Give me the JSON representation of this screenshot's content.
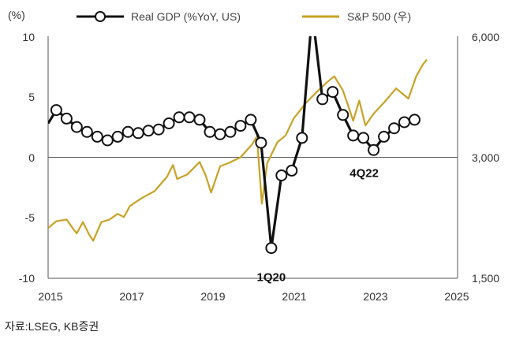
{
  "chart_data": {
    "type": "line",
    "y_unit_label": "(%)",
    "x_ticks": [
      "2015",
      "2017",
      "2019",
      "2021",
      "2023",
      "2025"
    ],
    "xlim": [
      2015,
      2025
    ],
    "y_left": {
      "ticks": [
        "10",
        "5",
        "0",
        "-5",
        "-10"
      ],
      "values": [
        10,
        5,
        0,
        -5,
        -10
      ],
      "ylim": [
        -10,
        10
      ]
    },
    "y_right": {
      "ticks": [
        "6,000",
        "3,000",
        "1,500"
      ],
      "values": [
        6000,
        3000,
        1500
      ],
      "scale": "log",
      "ylim": [
        1500,
        6000
      ]
    },
    "grid": "horizontal-zero-line",
    "legend_position": "top",
    "series": [
      {
        "name": "Real GDP (%YoY, US)",
        "axis": "left",
        "color": "#111111",
        "points": [
          [
            2015.0,
            2.8
          ],
          [
            2015.2,
            3.9
          ],
          [
            2015.45,
            3.2
          ],
          [
            2015.7,
            2.5
          ],
          [
            2015.95,
            2.1
          ],
          [
            2016.2,
            1.7
          ],
          [
            2016.45,
            1.4
          ],
          [
            2016.7,
            1.7
          ],
          [
            2016.95,
            2.1
          ],
          [
            2017.2,
            2.0
          ],
          [
            2017.45,
            2.2
          ],
          [
            2017.7,
            2.3
          ],
          [
            2017.95,
            2.8
          ],
          [
            2018.2,
            3.3
          ],
          [
            2018.45,
            3.3
          ],
          [
            2018.7,
            3.1
          ],
          [
            2018.95,
            2.1
          ],
          [
            2019.2,
            1.9
          ],
          [
            2019.45,
            2.1
          ],
          [
            2019.7,
            2.6
          ],
          [
            2019.95,
            3.1
          ],
          [
            2020.2,
            1.2
          ],
          [
            2020.45,
            -7.5
          ],
          [
            2020.7,
            -1.5
          ],
          [
            2020.95,
            -1.1
          ],
          [
            2021.2,
            1.6
          ],
          [
            2021.45,
            12.0
          ],
          [
            2021.7,
            4.8
          ],
          [
            2021.95,
            5.4
          ],
          [
            2022.2,
            3.5
          ],
          [
            2022.45,
            1.8
          ],
          [
            2022.7,
            1.6
          ],
          [
            2022.95,
            0.6
          ],
          [
            2023.2,
            1.7
          ],
          [
            2023.45,
            2.4
          ],
          [
            2023.7,
            2.9
          ],
          [
            2023.95,
            3.1
          ]
        ],
        "markers": [
          [
            2015.2,
            3.9
          ],
          [
            2015.45,
            3.2
          ],
          [
            2015.7,
            2.5
          ],
          [
            2015.95,
            2.1
          ],
          [
            2016.2,
            1.7
          ],
          [
            2016.45,
            1.4
          ],
          [
            2016.7,
            1.7
          ],
          [
            2016.95,
            2.1
          ],
          [
            2017.2,
            2.0
          ],
          [
            2017.45,
            2.2
          ],
          [
            2017.7,
            2.3
          ],
          [
            2017.95,
            2.8
          ],
          [
            2018.2,
            3.3
          ],
          [
            2018.45,
            3.3
          ],
          [
            2018.7,
            3.1
          ],
          [
            2018.95,
            2.1
          ],
          [
            2019.2,
            1.9
          ],
          [
            2019.45,
            2.1
          ],
          [
            2019.7,
            2.6
          ],
          [
            2019.95,
            3.1
          ],
          [
            2020.2,
            1.2
          ],
          [
            2020.45,
            -7.5
          ],
          [
            2020.7,
            -1.5
          ],
          [
            2020.95,
            -1.1
          ],
          [
            2021.2,
            1.6
          ],
          [
            2021.7,
            4.8
          ],
          [
            2021.95,
            5.4
          ],
          [
            2022.2,
            3.5
          ],
          [
            2022.45,
            1.8
          ],
          [
            2022.7,
            1.6
          ],
          [
            2022.95,
            0.6
          ],
          [
            2023.2,
            1.7
          ],
          [
            2023.45,
            2.4
          ],
          [
            2023.7,
            2.9
          ],
          [
            2023.95,
            3.1
          ]
        ]
      },
      {
        "name": "S&P 500 (우)",
        "axis": "right",
        "color": "#C9A227",
        "points": [
          [
            2015.0,
            2000
          ],
          [
            2015.2,
            2080
          ],
          [
            2015.45,
            2100
          ],
          [
            2015.6,
            2000
          ],
          [
            2015.7,
            1940
          ],
          [
            2015.85,
            2070
          ],
          [
            2016.0,
            1930
          ],
          [
            2016.1,
            1860
          ],
          [
            2016.3,
            2070
          ],
          [
            2016.5,
            2100
          ],
          [
            2016.7,
            2170
          ],
          [
            2016.85,
            2130
          ],
          [
            2017.0,
            2270
          ],
          [
            2017.3,
            2380
          ],
          [
            2017.6,
            2470
          ],
          [
            2017.9,
            2680
          ],
          [
            2018.05,
            2870
          ],
          [
            2018.15,
            2650
          ],
          [
            2018.4,
            2720
          ],
          [
            2018.7,
            2920
          ],
          [
            2018.85,
            2700
          ],
          [
            2018.98,
            2450
          ],
          [
            2019.2,
            2850
          ],
          [
            2019.4,
            2900
          ],
          [
            2019.7,
            3000
          ],
          [
            2019.98,
            3230
          ],
          [
            2020.1,
            3380
          ],
          [
            2020.22,
            2300
          ],
          [
            2020.35,
            2900
          ],
          [
            2020.6,
            3270
          ],
          [
            2020.8,
            3400
          ],
          [
            2021.0,
            3750
          ],
          [
            2021.3,
            4100
          ],
          [
            2021.6,
            4400
          ],
          [
            2021.8,
            4600
          ],
          [
            2021.99,
            4770
          ],
          [
            2022.2,
            4400
          ],
          [
            2022.45,
            3700
          ],
          [
            2022.6,
            4150
          ],
          [
            2022.75,
            3600
          ],
          [
            2022.95,
            3850
          ],
          [
            2023.2,
            4100
          ],
          [
            2023.5,
            4450
          ],
          [
            2023.8,
            4200
          ],
          [
            2023.99,
            4770
          ],
          [
            2024.15,
            5100
          ],
          [
            2024.25,
            5250
          ]
        ]
      }
    ],
    "annotations": [
      {
        "text": "1Q20",
        "x": 2020.45,
        "y": -7.5,
        "axis": "left"
      },
      {
        "text": "4Q22",
        "x": 2022.95,
        "y": 0.6,
        "axis": "left"
      }
    ]
  },
  "source_note": "자료:LSEG, KB증권"
}
